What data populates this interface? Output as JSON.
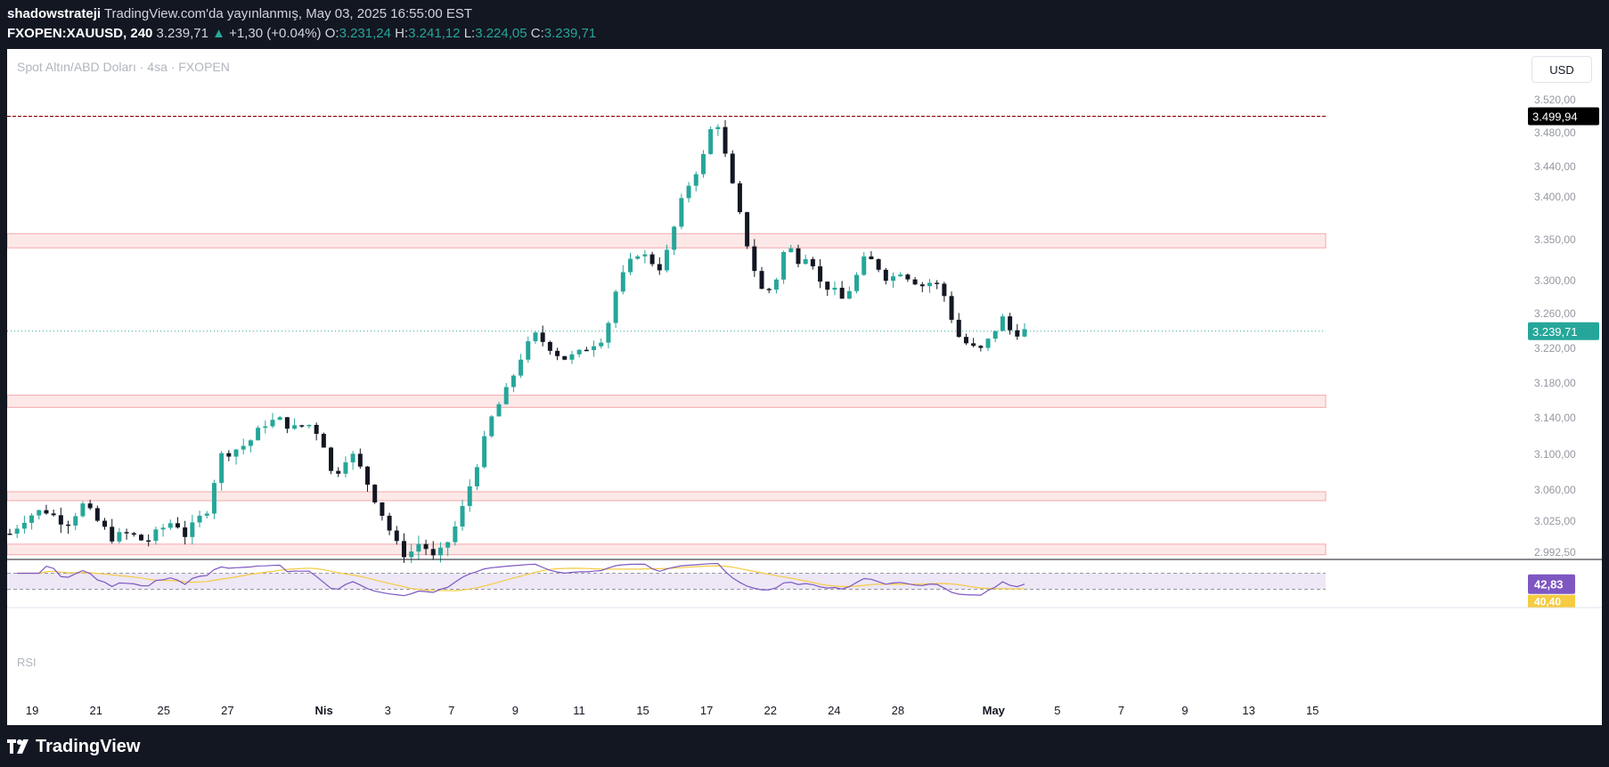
{
  "header": {
    "author": "shadowstrateji",
    "published": "TradingView.com'da yayınlanmış, May 03, 2025 16:55:00 EST",
    "symbol": "FXOPEN:XAUUSD, 240",
    "last": "3.239,71",
    "change": "+1,30 (+0.04%)",
    "ohlc": {
      "o_label": "O:",
      "o": "3.231,24",
      "h_label": "H:",
      "h": "3.241,12",
      "l_label": "L:",
      "l": "3.224,05",
      "c_label": "C:",
      "c": "3.239,71"
    }
  },
  "chart_subtitle": "Spot Altın/ABD Doları · 4sa · FXOPEN",
  "currency_button": "USD",
  "rsi_label": "RSI",
  "footer_brand": "TradingView",
  "colors": {
    "up": "#26a69a",
    "down": "#131722",
    "zone_fill": "#fde8e8",
    "zone_line": "#f4a9a9",
    "rsi_line": "#7e57c2",
    "rsi_ma": "#f5cb42",
    "high_line": "#8b0000"
  },
  "chart_data": {
    "type": "candlestick",
    "timeframe": "240",
    "title": "Spot Altın/ABD Doları · 4sa · FXOPEN",
    "y_axis": {
      "ticks": [
        3520,
        3480,
        3440,
        3400,
        3350,
        3300,
        3260,
        3220,
        3180,
        3140,
        3100,
        3060,
        3025,
        2992.5
      ],
      "tick_labels": [
        "3.520,00",
        "3.480,00",
        "3.440,00",
        "3.400,00",
        "3.350,00",
        "3.300,00",
        "3.260,00",
        "3.220,00",
        "3.180,00",
        "3.140,00",
        "3.100,00",
        "3.060,00",
        "3.025,00",
        "2.992,50"
      ],
      "position": "right"
    },
    "x_axis": {
      "tick_labels": [
        "19",
        "21",
        "25",
        "27",
        "Nis",
        "3",
        "7",
        "9",
        "11",
        "15",
        "17",
        "22",
        "24",
        "28",
        "May",
        "5",
        "7",
        "9",
        "13",
        "15"
      ],
      "bold_labels": [
        "Nis",
        "May"
      ]
    },
    "price_labels": [
      {
        "value": 3499.94,
        "label": "3.499,94",
        "style": "high"
      },
      {
        "value": 3239.71,
        "label": "3.239,71",
        "style": "last"
      }
    ],
    "zones": [
      [
        3340,
        3357
      ],
      [
        3152,
        3166
      ],
      [
        3048,
        3058
      ],
      [
        2990,
        3001
      ]
    ],
    "path": [
      [
        0,
        3012
      ],
      [
        6,
        3030
      ],
      [
        12,
        3038
      ],
      [
        20,
        3022
      ],
      [
        26,
        3044
      ],
      [
        30,
        3028
      ],
      [
        36,
        3008
      ],
      [
        42,
        3012
      ],
      [
        48,
        3003
      ],
      [
        54,
        3018
      ],
      [
        58,
        3026
      ],
      [
        62,
        3010
      ],
      [
        70,
        3040
      ],
      [
        74,
        3098
      ],
      [
        80,
        3106
      ],
      [
        84,
        3112
      ],
      [
        90,
        3134
      ],
      [
        95,
        3138
      ],
      [
        100,
        3128
      ],
      [
        105,
        3134
      ],
      [
        110,
        3120
      ],
      [
        114,
        3072
      ],
      [
        120,
        3104
      ],
      [
        124,
        3082
      ],
      [
        130,
        3042
      ],
      [
        136,
        3002
      ],
      [
        140,
        2988
      ],
      [
        145,
        3004
      ],
      [
        150,
        2984
      ],
      [
        156,
        3010
      ],
      [
        160,
        3042
      ],
      [
        164,
        3082
      ],
      [
        170,
        3140
      ],
      [
        176,
        3176
      ],
      [
        180,
        3208
      ],
      [
        185,
        3236
      ],
      [
        190,
        3223
      ],
      [
        195,
        3208
      ],
      [
        200,
        3212
      ],
      [
        204,
        3222
      ],
      [
        210,
        3234
      ],
      [
        214,
        3290
      ],
      [
        218,
        3318
      ],
      [
        222,
        3336
      ],
      [
        226,
        3324
      ],
      [
        230,
        3314
      ],
      [
        234,
        3360
      ],
      [
        238,
        3406
      ],
      [
        242,
        3433
      ],
      [
        246,
        3462
      ],
      [
        248,
        3496
      ],
      [
        250,
        3490
      ],
      [
        254,
        3428
      ],
      [
        258,
        3372
      ],
      [
        262,
        3320
      ],
      [
        266,
        3282
      ],
      [
        270,
        3298
      ],
      [
        274,
        3346
      ],
      [
        278,
        3325
      ],
      [
        282,
        3334
      ],
      [
        286,
        3296
      ],
      [
        290,
        3290
      ],
      [
        294,
        3276
      ],
      [
        298,
        3300
      ],
      [
        302,
        3330
      ],
      [
        306,
        3318
      ],
      [
        310,
        3300
      ],
      [
        314,
        3312
      ],
      [
        318,
        3302
      ],
      [
        322,
        3294
      ],
      [
        326,
        3300
      ],
      [
        330,
        3280
      ],
      [
        334,
        3236
      ],
      [
        338,
        3224
      ],
      [
        342,
        3216
      ],
      [
        346,
        3232
      ],
      [
        350,
        3256
      ],
      [
        353,
        3240
      ],
      [
        356,
        3238
      ],
      [
        358,
        3240
      ]
    ],
    "num_candles": 140,
    "rsi": {
      "last": 42.83,
      "last_label": "42,83",
      "ma_label": "40,40",
      "upper_band": 70,
      "lower_band": 30
    },
    "grid": false
  }
}
